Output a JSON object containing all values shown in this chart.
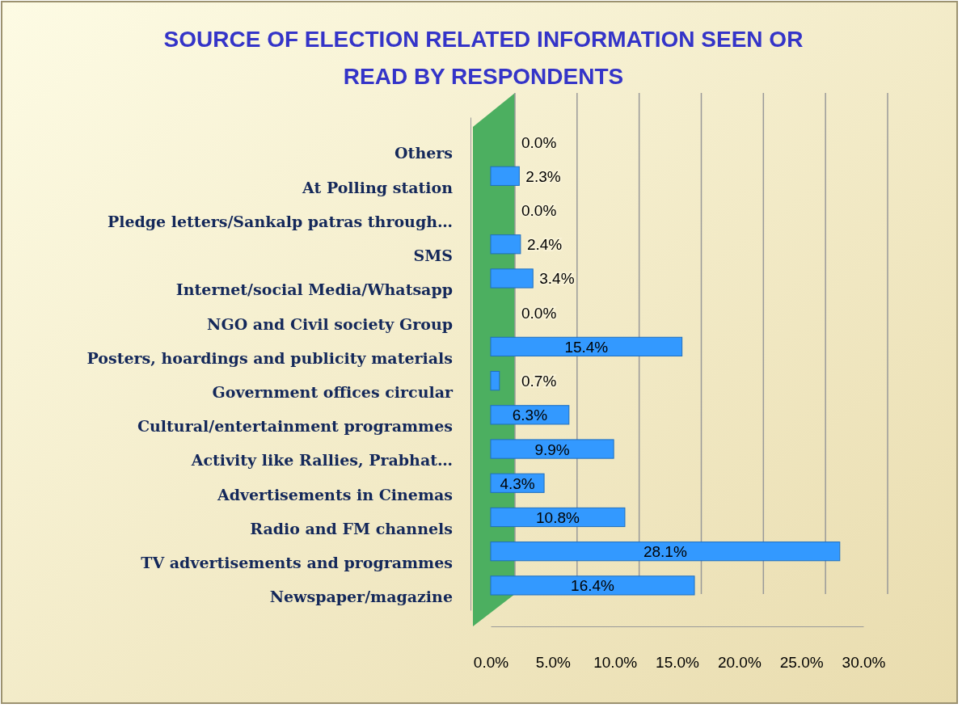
{
  "chart_data": {
    "type": "bar",
    "orientation": "horizontal",
    "title": "SOURCE OF ELECTION RELATED INFORMATION SEEN OR READ BY RESPONDENTS",
    "categories": [
      "Others",
      "At Polling station",
      "Pledge letters/Sankalp patras through…",
      "SMS",
      "Internet/social Media/Whatsapp",
      "NGO and Civil society Group",
      "Posters, hoardings and publicity materials",
      "Government offices circular",
      "Cultural/entertainment programmes",
      "Activity like Rallies, Prabhat…",
      "Advertisements in Cinemas",
      "Radio and FM channels",
      "TV advertisements and programmes",
      "Newspaper/magazine"
    ],
    "values": [
      0,
      2.3,
      0,
      2.4,
      3.4,
      0,
      15.4,
      0.7,
      6.3,
      9.9,
      4.3,
      10.8,
      28.1,
      16.4
    ],
    "value_labels": [
      "0.0%",
      "2.3%",
      "0.0%",
      "2.4%",
      "3.4%",
      "0.0%",
      "15.4%",
      "0.7%",
      "6.3%",
      "9.9%",
      "4.3%",
      "10.8%",
      "28.1%",
      "16.4%"
    ],
    "color": "#3399ff",
    "xlim": [
      0,
      30
    ],
    "xticks": [
      {
        "value": 0,
        "label": "0.0%"
      },
      {
        "value": 5,
        "label": "5.0%"
      },
      {
        "value": 10,
        "label": "10.0%"
      },
      {
        "value": 15,
        "label": "15.0%"
      },
      {
        "value": 20,
        "label": "20.0%"
      },
      {
        "value": 25,
        "label": "25.0%"
      },
      {
        "value": 30,
        "label": "30.0%"
      }
    ],
    "grid": "x"
  }
}
